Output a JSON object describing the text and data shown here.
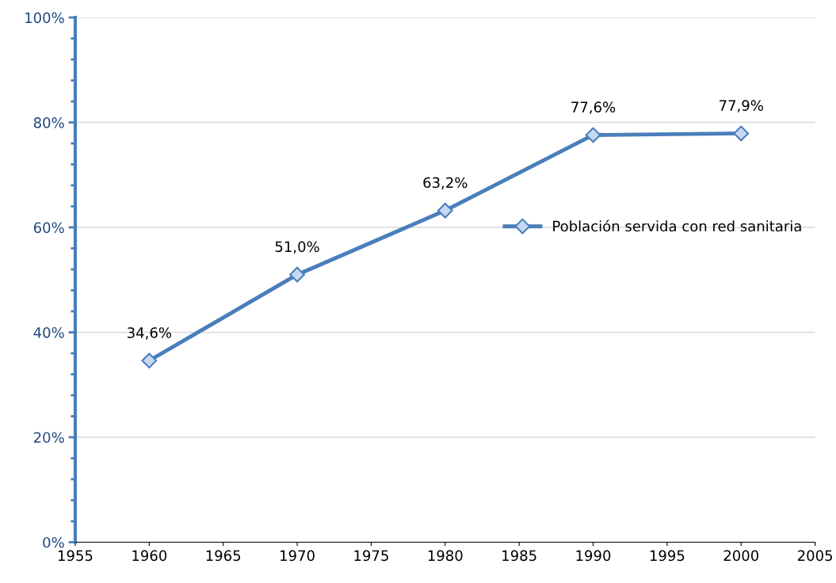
{
  "chart_data": {
    "type": "line",
    "x": [
      1960,
      1970,
      1980,
      1990,
      2000
    ],
    "series": [
      {
        "name": "Población servida con red sanitaria",
        "color": "#4a7ebb",
        "values": [
          34.6,
          51.0,
          63.2,
          77.6,
          77.9
        ],
        "value_labels": [
          "34,6%",
          "51,0%",
          "63,2%",
          "77,6%",
          "77,9%"
        ]
      }
    ],
    "xlim": [
      1955,
      2005
    ],
    "xticks": [
      1955,
      1960,
      1965,
      1970,
      1975,
      1980,
      1985,
      1990,
      1995,
      2000,
      2005
    ],
    "ylim": [
      0,
      100
    ],
    "yticks": [
      {
        "value": 0,
        "label": "0%"
      },
      {
        "value": 20,
        "label": "20%"
      },
      {
        "value": 40,
        "label": "40%"
      },
      {
        "value": 60,
        "label": "60%"
      },
      {
        "value": 80,
        "label": "80%"
      },
      {
        "value": 100,
        "label": "100%"
      }
    ],
    "grid": "y",
    "legend": "right",
    "marker": "diamond",
    "line_style": "solid"
  }
}
